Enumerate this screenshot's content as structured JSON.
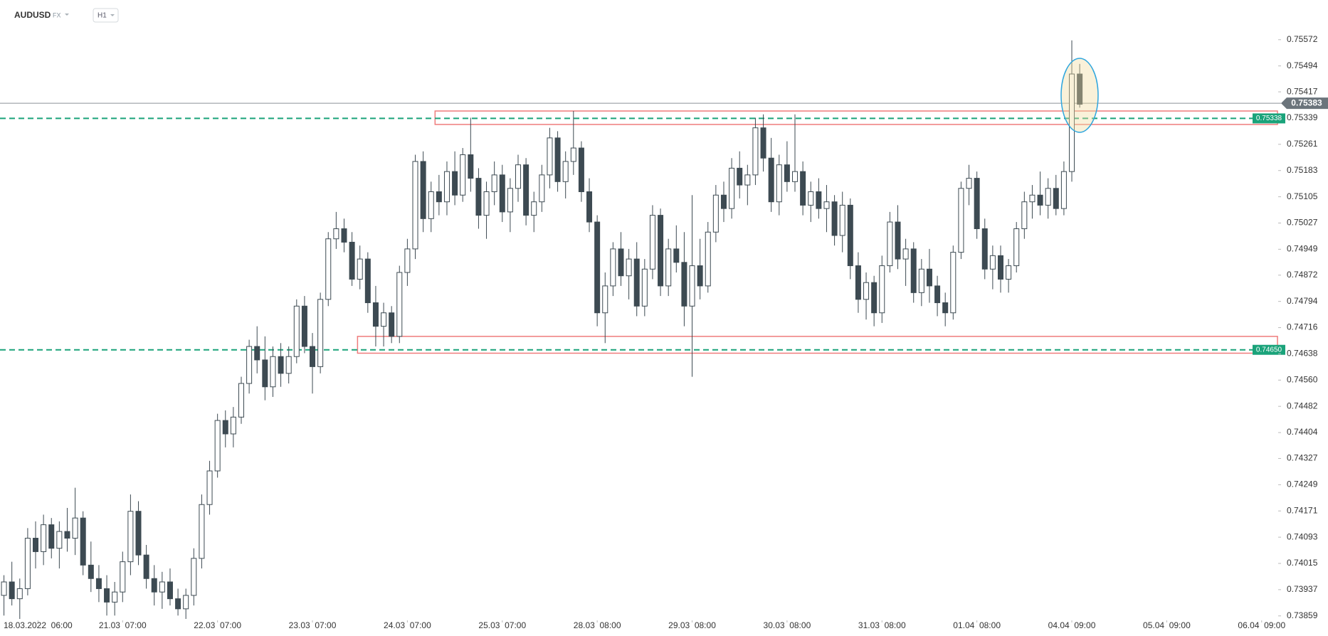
{
  "header": {
    "symbol": "AUDUSD",
    "market": "FX",
    "interval": "H1"
  },
  "chart_data": {
    "type": "candlestick",
    "colors": {
      "up": "#ffffff",
      "down": "#3d4a52",
      "outline": "#3d4a52",
      "level": "#1aa37a",
      "zone": "#ef7c7c",
      "price": "#6b747b"
    },
    "ylim": [
      0.7385,
      0.7569
    ],
    "yticks": [
      0.75572,
      0.75494,
      0.75417,
      0.75339,
      0.75261,
      0.75183,
      0.75105,
      0.75027,
      0.74949,
      0.74872,
      0.74794,
      0.74716,
      0.74638,
      {
        "value": 0.7456,
        "label": "0.74560"
      },
      0.74482,
      0.74404,
      0.74327,
      0.74249,
      0.74171,
      0.74093,
      0.74015,
      0.73937,
      0.73859
    ],
    "xlim": [
      -0.5,
      161
    ],
    "xticks": [
      {
        "value": 4.3,
        "label": "18.03.2022  06:00"
      },
      {
        "value": 15,
        "label": "21.03  07:00"
      },
      {
        "value": 27,
        "label": "22.03  07:00"
      },
      {
        "value": 39,
        "label": "23.03  07:00"
      },
      {
        "value": 51,
        "label": "24.03  07:00"
      },
      {
        "value": 63,
        "label": "25.03  07:00"
      },
      {
        "value": 75,
        "label": "28.03  08:00"
      },
      {
        "value": 87,
        "label": "29.03  08:00"
      },
      {
        "value": 99,
        "label": "30.03  08:00"
      },
      {
        "value": 111,
        "label": "31.03  08:00"
      },
      {
        "value": 123,
        "label": "01.04  08:00"
      },
      {
        "value": 135,
        "label": "04.04  09:00"
      },
      {
        "value": 147,
        "label": "05.04  09:00"
      },
      {
        "value": 159,
        "label": "06.04  09:00"
      }
    ],
    "last_price": 0.75383,
    "levels": [
      0.75338,
      {
        "value": 0.7465,
        "label": "0.74650"
      }
    ],
    "zones": [
      {
        "ylim": [
          0.7532,
          0.7536
        ],
        "start": 54.5
      },
      {
        "ylim": [
          0.7464,
          0.7469
        ],
        "start": 44.7
      }
    ],
    "candles": [
      [
        0.7392,
        0.7398,
        0.7386,
        0.7396
      ],
      [
        0.7396,
        0.7402,
        0.7389,
        0.7391
      ],
      [
        0.7391,
        0.7397,
        0.7385,
        0.7394
      ],
      [
        0.7394,
        0.7412,
        0.7392,
        0.7409
      ],
      [
        0.7409,
        0.7414,
        0.74,
        0.7405
      ],
      [
        0.7405,
        0.7416,
        0.7401,
        0.7413
      ],
      [
        0.7413,
        0.7415,
        0.7403,
        0.7406
      ],
      [
        0.7406,
        0.7414,
        0.74,
        0.7411
      ],
      [
        0.7411,
        0.7418,
        0.7405,
        0.7409
      ],
      [
        0.7409,
        0.7424,
        0.7404,
        0.7415
      ],
      [
        0.7415,
        0.7417,
        0.7398,
        0.7401
      ],
      [
        0.7401,
        0.7408,
        0.7393,
        0.7397
      ],
      [
        0.7397,
        0.7401,
        0.739,
        0.7394
      ],
      [
        0.7394,
        0.7398,
        0.7386,
        0.739
      ],
      [
        0.739,
        0.7396,
        0.7386,
        0.7393
      ],
      [
        0.7393,
        0.7405,
        0.739,
        0.7402
      ],
      [
        0.7402,
        0.7422,
        0.7398,
        0.7417
      ],
      [
        0.7417,
        0.742,
        0.7401,
        0.7404
      ],
      [
        0.7404,
        0.7407,
        0.7394,
        0.7397
      ],
      [
        0.7397,
        0.7401,
        0.7389,
        0.7393
      ],
      [
        0.7393,
        0.7399,
        0.7388,
        0.7396
      ],
      [
        0.7396,
        0.74,
        0.7389,
        0.7391
      ],
      [
        0.7391,
        0.7394,
        0.7386,
        0.7388
      ],
      [
        0.7388,
        0.7394,
        0.7385,
        0.7392
      ],
      [
        0.7392,
        0.7406,
        0.7389,
        0.7403
      ],
      [
        0.7403,
        0.7422,
        0.74,
        0.7419
      ],
      [
        0.7419,
        0.7432,
        0.7416,
        0.7429
      ],
      [
        0.7429,
        0.7446,
        0.7427,
        0.7444
      ],
      [
        0.7444,
        0.7447,
        0.7436,
        0.744
      ],
      [
        0.744,
        0.7448,
        0.7436,
        0.7445
      ],
      [
        0.7445,
        0.7457,
        0.7443,
        0.7455
      ],
      [
        0.7455,
        0.7468,
        0.7452,
        0.7466
      ],
      [
        0.7466,
        0.7472,
        0.7458,
        0.7462
      ],
      [
        0.7462,
        0.7469,
        0.745,
        0.7454
      ],
      [
        0.7454,
        0.7466,
        0.7451,
        0.7463
      ],
      [
        0.7463,
        0.7467,
        0.7454,
        0.7458
      ],
      [
        0.7458,
        0.7466,
        0.7455,
        0.7463
      ],
      [
        0.7463,
        0.748,
        0.7461,
        0.7478
      ],
      [
        0.7478,
        0.7481,
        0.7464,
        0.7466
      ],
      [
        0.7466,
        0.747,
        0.7452,
        0.746
      ],
      [
        0.746,
        0.7482,
        0.7458,
        0.748
      ],
      [
        0.748,
        0.75,
        0.7478,
        0.7498
      ],
      [
        0.7498,
        0.7506,
        0.7495,
        0.7501
      ],
      [
        0.7501,
        0.7504,
        0.7494,
        0.7497
      ],
      [
        0.7497,
        0.75,
        0.7484,
        0.7486
      ],
      [
        0.7486,
        0.7496,
        0.7483,
        0.7492
      ],
      [
        0.7492,
        0.7494,
        0.7476,
        0.7479
      ],
      [
        0.7479,
        0.7484,
        0.7466,
        0.7472
      ],
      [
        0.7472,
        0.7479,
        0.7466,
        0.7476
      ],
      [
        0.7476,
        0.7478,
        0.7467,
        0.7469
      ],
      [
        0.7469,
        0.749,
        0.7467,
        0.7488
      ],
      [
        0.7488,
        0.7498,
        0.7484,
        0.7495
      ],
      [
        0.7495,
        0.7523,
        0.7492,
        0.7521
      ],
      [
        0.7521,
        0.7524,
        0.75,
        0.7504
      ],
      [
        0.7504,
        0.7515,
        0.75,
        0.7512
      ],
      [
        0.7512,
        0.7517,
        0.7505,
        0.7509
      ],
      [
        0.7509,
        0.7521,
        0.7505,
        0.7518
      ],
      [
        0.7518,
        0.7524,
        0.7508,
        0.7511
      ],
      [
        0.7511,
        0.7525,
        0.7509,
        0.7523
      ],
      [
        0.7523,
        0.7534,
        0.7512,
        0.7516
      ],
      [
        0.7516,
        0.7519,
        0.7501,
        0.7505
      ],
      [
        0.7505,
        0.7515,
        0.7498,
        0.7512
      ],
      [
        0.7512,
        0.7521,
        0.7508,
        0.7517
      ],
      [
        0.7517,
        0.752,
        0.7503,
        0.7506
      ],
      [
        0.7506,
        0.7516,
        0.75,
        0.7513
      ],
      [
        0.7513,
        0.7523,
        0.7509,
        0.752
      ],
      [
        0.752,
        0.7522,
        0.7502,
        0.7505
      ],
      [
        0.7505,
        0.7512,
        0.75,
        0.7509
      ],
      [
        0.7509,
        0.752,
        0.7506,
        0.7517
      ],
      [
        0.7517,
        0.7531,
        0.7513,
        0.7528
      ],
      [
        0.7528,
        0.753,
        0.7512,
        0.7515
      ],
      [
        0.7515,
        0.7524,
        0.751,
        0.7521
      ],
      [
        0.7521,
        0.7536,
        0.7517,
        0.7525
      ],
      [
        0.7525,
        0.7527,
        0.7509,
        0.7512
      ],
      [
        0.7512,
        0.7516,
        0.75,
        0.7503
      ],
      [
        0.7503,
        0.7505,
        0.7472,
        0.7476
      ],
      [
        0.7476,
        0.7488,
        0.7467,
        0.7484
      ],
      [
        0.7484,
        0.7497,
        0.7481,
        0.7495
      ],
      [
        0.7495,
        0.75,
        0.7484,
        0.7487
      ],
      [
        0.7487,
        0.7495,
        0.748,
        0.7492
      ],
      [
        0.7492,
        0.7497,
        0.7475,
        0.7478
      ],
      [
        0.7478,
        0.7492,
        0.7475,
        0.7489
      ],
      [
        0.7489,
        0.7508,
        0.7486,
        0.7505
      ],
      [
        0.7505,
        0.7507,
        0.7481,
        0.7484
      ],
      [
        0.7484,
        0.7498,
        0.7481,
        0.7495
      ],
      [
        0.7495,
        0.7502,
        0.7488,
        0.7491
      ],
      [
        0.7491,
        0.75,
        0.7472,
        0.7478
      ],
      [
        0.7478,
        0.7511,
        0.7457,
        0.749
      ],
      [
        0.749,
        0.7498,
        0.748,
        0.7484
      ],
      [
        0.7484,
        0.7503,
        0.7482,
        0.75
      ],
      [
        0.75,
        0.7514,
        0.7497,
        0.7511
      ],
      [
        0.7511,
        0.7515,
        0.7503,
        0.7507
      ],
      [
        0.7507,
        0.7522,
        0.7504,
        0.7519
      ],
      [
        0.7519,
        0.7524,
        0.751,
        0.7514
      ],
      [
        0.7514,
        0.752,
        0.7508,
        0.7517
      ],
      [
        0.7517,
        0.7534,
        0.7514,
        0.7531
      ],
      [
        0.7531,
        0.7535,
        0.7518,
        0.7522
      ],
      [
        0.7522,
        0.7528,
        0.7506,
        0.7509
      ],
      [
        0.7509,
        0.7523,
        0.7505,
        0.752
      ],
      [
        0.752,
        0.7527,
        0.7512,
        0.7515
      ],
      [
        0.7515,
        0.7535,
        0.7512,
        0.7518
      ],
      [
        0.7518,
        0.7521,
        0.7505,
        0.7508
      ],
      [
        0.7508,
        0.7515,
        0.7503,
        0.7512
      ],
      [
        0.7512,
        0.7516,
        0.7504,
        0.7507
      ],
      [
        0.7507,
        0.7514,
        0.75,
        0.7509
      ],
      [
        0.7509,
        0.7511,
        0.7496,
        0.7499
      ],
      [
        0.7499,
        0.7512,
        0.7494,
        0.7508
      ],
      [
        0.7508,
        0.751,
        0.7486,
        0.749
      ],
      [
        0.749,
        0.7494,
        0.7476,
        0.748
      ],
      [
        0.748,
        0.7488,
        0.7474,
        0.7485
      ],
      [
        0.7485,
        0.7487,
        0.7472,
        0.7476
      ],
      [
        0.7476,
        0.7493,
        0.7473,
        0.749
      ],
      [
        0.749,
        0.7506,
        0.7488,
        0.7503
      ],
      [
        0.7503,
        0.7508,
        0.7489,
        0.7492
      ],
      [
        0.7492,
        0.7498,
        0.7484,
        0.7495
      ],
      [
        0.7495,
        0.7497,
        0.7479,
        0.7482
      ],
      [
        0.7482,
        0.7492,
        0.7478,
        0.7489
      ],
      [
        0.7489,
        0.7495,
        0.7479,
        0.7484
      ],
      [
        0.7484,
        0.7487,
        0.7475,
        0.7479
      ],
      [
        0.7479,
        0.7482,
        0.7472,
        0.7476
      ],
      [
        0.7476,
        0.7496,
        0.7474,
        0.7494
      ],
      [
        0.7494,
        0.7515,
        0.7492,
        0.7513
      ],
      [
        0.7513,
        0.752,
        0.7508,
        0.7516
      ],
      [
        0.7516,
        0.7518,
        0.7498,
        0.7501
      ],
      [
        0.7501,
        0.7504,
        0.7486,
        0.7489
      ],
      [
        0.7489,
        0.7496,
        0.7483,
        0.7493
      ],
      [
        0.7493,
        0.7496,
        0.7482,
        0.7486
      ],
      [
        0.7486,
        0.7492,
        0.7482,
        0.749
      ],
      [
        0.749,
        0.7503,
        0.7488,
        0.7501
      ],
      [
        0.7501,
        0.7512,
        0.7498,
        0.7509
      ],
      [
        0.7509,
        0.7514,
        0.7504,
        0.7511
      ],
      [
        0.7511,
        0.7518,
        0.7505,
        0.7508
      ],
      [
        0.7508,
        0.7516,
        0.7504,
        0.7513
      ],
      [
        0.7513,
        0.7517,
        0.7505,
        0.7507
      ],
      [
        0.7507,
        0.7521,
        0.7505,
        0.7518
      ],
      [
        0.7518,
        0.7557,
        0.7515,
        0.7547
      ],
      [
        0.7547,
        0.755,
        0.7537,
        0.7538
      ]
    ]
  }
}
